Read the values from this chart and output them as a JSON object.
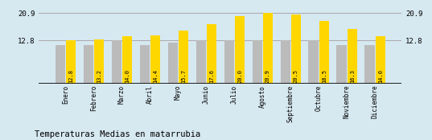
{
  "categories": [
    "Enero",
    "Febrero",
    "Marzo",
    "Abril",
    "Mayo",
    "Junio",
    "Julio",
    "Agosto",
    "Septiembre",
    "Octubre",
    "Noviembre",
    "Diciembre"
  ],
  "values": [
    12.8,
    13.2,
    14.0,
    14.4,
    15.7,
    17.6,
    20.0,
    20.9,
    20.5,
    18.5,
    16.3,
    14.0
  ],
  "gray_values": [
    11.5,
    11.5,
    12.8,
    11.5,
    12.2,
    12.8,
    12.8,
    12.8,
    12.8,
    12.8,
    11.5,
    11.5
  ],
  "bar_color_yellow": "#FFD700",
  "bar_color_gray": "#BBBBBB",
  "background_color": "#D6E8F0",
  "title": "Temperaturas Medias en matarrubia",
  "ylim_min": 0,
  "ylim_max": 23.5,
  "yticks": [
    12.8,
    20.9
  ],
  "grid_color": "#AAAAAA",
  "label_fontsize": 5.5,
  "tick_fontsize": 6.5,
  "title_fontsize": 7.5,
  "value_fontsize": 5.0
}
